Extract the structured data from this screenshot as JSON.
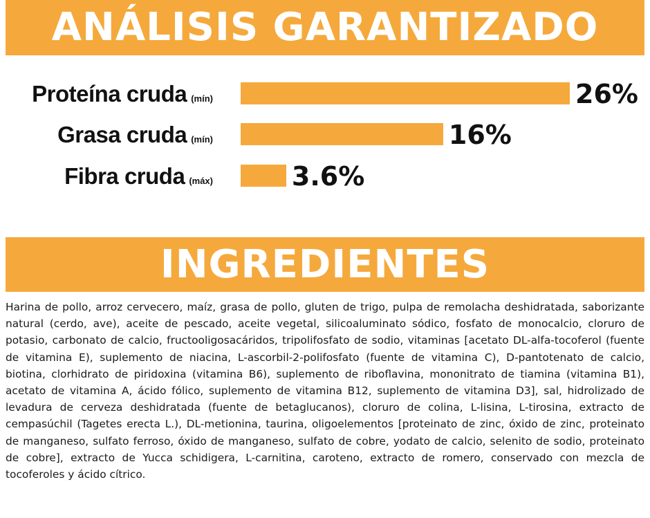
{
  "analysis": {
    "title": "ANÁLISIS GARANTIZADO",
    "max_percent": 26,
    "rows": [
      {
        "label": "Proteína cruda",
        "qualifier": "(mín)",
        "value_text": "26%",
        "value": 26
      },
      {
        "label": "Grasa cruda",
        "qualifier": "(mín)",
        "value_text": "16%",
        "value": 16
      },
      {
        "label": "Fibra cruda",
        "qualifier": "(máx)",
        "value_text": "3.6%",
        "value": 3.6
      }
    ]
  },
  "ingredients": {
    "title": "INGREDIENTES",
    "text": "Harina de pollo, arroz cervecero, maíz, grasa de pollo, gluten de trigo, pulpa de remolacha deshidratada, saborizante natural (cerdo, ave), aceite de pescado, aceite vegetal, silicoaluminato sódico, fosfato de monocalcio, cloruro de potasio, carbonato de calcio, fructooligosacáridos, tripolifosfato de sodio, vitaminas [acetato DL-alfa-tocoferol (fuente de vitamina E), suplemento de niacina, L-ascorbil-2-polifosfato (fuente de vitamina C), D-pantotenato de calcio, biotina, clorhidrato de piridoxina (vitamina B6), suplemento de riboflavina, mononitrato de tiamina (vitamina B1), acetato de vitamina A, ácido fólico, suplemento de vitamina B12, suplemento de vitamina D3], sal, hidrolizado de levadura de cerveza deshidratada (fuente de betaglucanos), cloruro de colina, L-lisina, L-tirosina, extracto de cempasúchil (Tagetes erecta L.), DL-metionina, taurina, oligoelementos [proteinato de zinc, óxido de zinc, proteinato de manganeso, sulfato ferroso, óxido de manganeso, sulfato de cobre, yodato de calcio, selenito de sodio, proteinato de cobre], extracto de Yucca schidigera, L-carnitina, caroteno, extracto de romero, conservado con mezcla de tocoferoles y ácido cítrico."
  },
  "colors": {
    "accent": "#f5a93c",
    "banner_text": "#ffffff",
    "body_text": "#1a1a1a"
  }
}
